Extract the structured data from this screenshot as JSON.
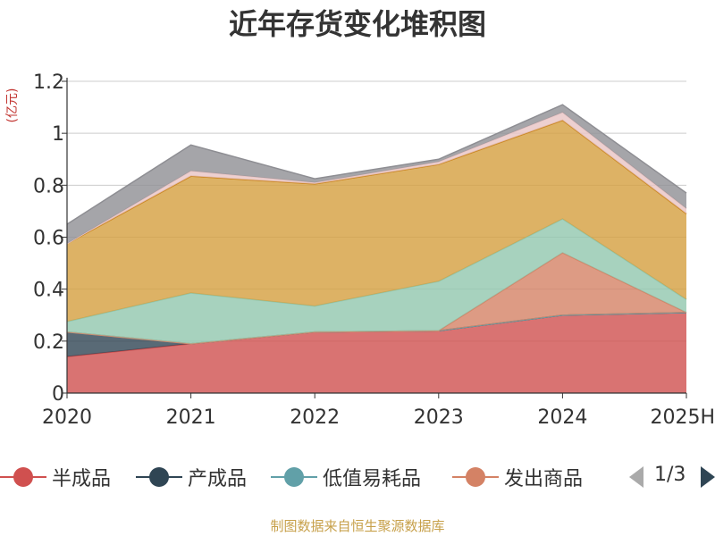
{
  "chart_data": {
    "type": "area",
    "stacked": true,
    "title": "近年存货变化堆积图",
    "ylabel": "(亿元)",
    "xlabel": "",
    "x": [
      "2020",
      "2021",
      "2022",
      "2023",
      "2024",
      "2025H"
    ],
    "ylim": [
      0,
      1.2
    ],
    "yticks": [
      0,
      0.2,
      0.4,
      0.6,
      0.8,
      1,
      1.2
    ],
    "ytick_labels": [
      "0",
      "0.2",
      "0.4",
      "0.6",
      "0.8",
      "1",
      "1.2"
    ],
    "grid": true,
    "legend_position": "bottom",
    "series": [
      {
        "name": "半成品",
        "color": "#d0504f",
        "values": [
          0.14,
          0.19,
          0.235,
          0.24,
          0.3,
          0.31
        ]
      },
      {
        "name": "产成品",
        "color": "#2f4554",
        "values": [
          0.095,
          0.0,
          0.0,
          0.0,
          0.0,
          0.0
        ]
      },
      {
        "name": "低值易耗品",
        "color": "#61a0a8",
        "values": [
          0.0,
          0.0,
          0.0,
          0.0,
          0.0,
          0.0
        ]
      },
      {
        "name": "发出商品",
        "color": "#d48265",
        "values": [
          0.0,
          0.0,
          0.0,
          0.0,
          0.24,
          0.0
        ]
      },
      {
        "color": "#91c7ae",
        "values": [
          0.04,
          0.195,
          0.1,
          0.19,
          0.13,
          0.05
        ]
      },
      {
        "color": "#d59f3e",
        "values": [
          0.3,
          0.45,
          0.47,
          0.45,
          0.38,
          0.33
        ]
      },
      {
        "color": "#ca8622",
        "values": [
          0.0,
          0.0,
          0.0,
          0.0,
          0.0,
          0.0
        ]
      },
      {
        "color": "#e8c4c4",
        "values": [
          0.0,
          0.02,
          0.005,
          0.01,
          0.03,
          0.02
        ]
      },
      {
        "color": "#8e8e93",
        "values": [
          0.075,
          0.1,
          0.015,
          0.01,
          0.03,
          0.06
        ]
      }
    ]
  },
  "legend": {
    "page_text": "1/3",
    "prev_color": "#aaaaaa",
    "next_color": "#2f4554"
  },
  "source_note": "制图数据来自恒生聚源数据库"
}
